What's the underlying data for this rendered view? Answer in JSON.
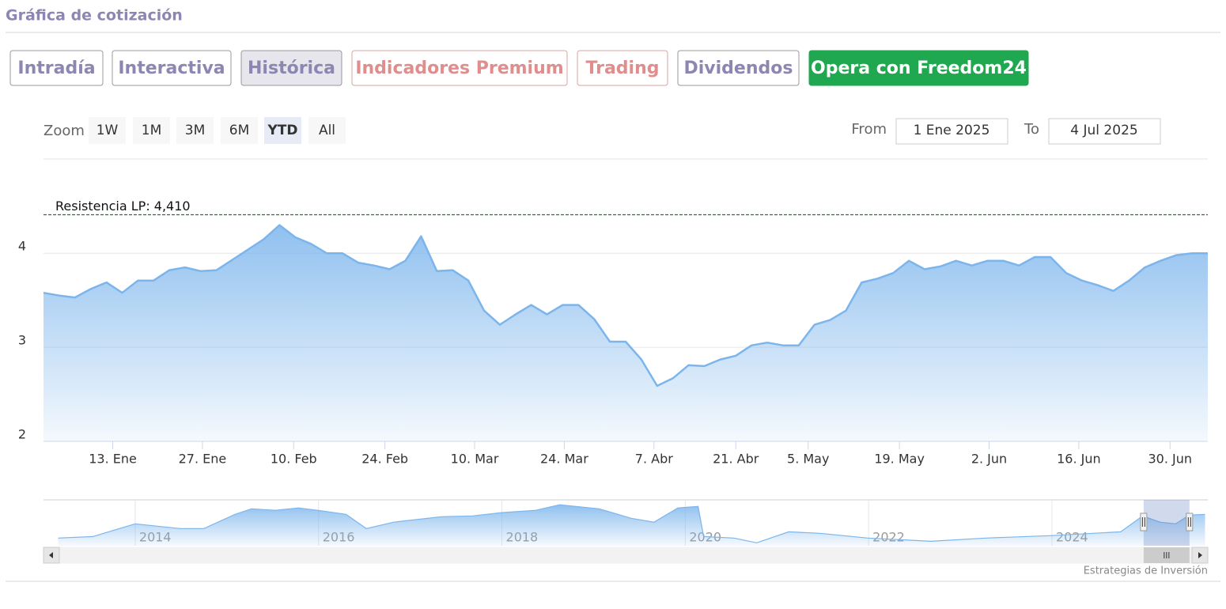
{
  "header": {
    "title": "Gráfica de cotización"
  },
  "tabs": {
    "items": [
      "Intradía",
      "Interactiva",
      "Histórica",
      "Indicadores Premium",
      "Trading",
      "Dividendos",
      "Opera con Freedom24"
    ],
    "selected": 2
  },
  "zoom": {
    "label": "Zoom",
    "buttons": [
      "1W",
      "1M",
      "3M",
      "6M",
      "YTD",
      "All"
    ],
    "selected": 4
  },
  "range": {
    "from_label": "From",
    "from": "1 Ene 2025",
    "to_label": "To",
    "to": "4 Jul 2025"
  },
  "chart_data": {
    "type": "area",
    "color": "#7cb5ec",
    "grid": true,
    "ylim": [
      2,
      4.7
    ],
    "yticks": [
      2,
      3,
      4
    ],
    "xlim": [
      0,
      74
    ],
    "xticks": [
      {
        "value": 4.4,
        "label": "13. Ene"
      },
      {
        "value": 10.1,
        "label": "27. Ene"
      },
      {
        "value": 15.9,
        "label": "10. Feb"
      },
      {
        "value": 21.7,
        "label": "24. Feb"
      },
      {
        "value": 27.4,
        "label": "10. Mar"
      },
      {
        "value": 33.1,
        "label": "24. Mar"
      },
      {
        "value": 38.8,
        "label": "7. Abr"
      },
      {
        "value": 44.0,
        "label": "21. Abr"
      },
      {
        "value": 48.6,
        "label": "5. May"
      },
      {
        "value": 54.4,
        "label": "19. May"
      },
      {
        "value": 60.1,
        "label": "2. Jun"
      },
      {
        "value": 65.8,
        "label": "16. Jun"
      },
      {
        "value": 71.6,
        "label": "30. Jun"
      }
    ],
    "values": [
      3.58,
      3.55,
      3.53,
      3.62,
      3.69,
      3.58,
      3.71,
      3.71,
      3.82,
      3.85,
      3.81,
      3.82,
      3.93,
      4.04,
      4.15,
      4.3,
      4.17,
      4.1,
      4.0,
      4.0,
      3.9,
      3.87,
      3.83,
      3.92,
      4.18,
      3.81,
      3.82,
      3.71,
      3.39,
      3.24,
      3.35,
      3.45,
      3.35,
      3.45,
      3.45,
      3.3,
      3.06,
      3.06,
      2.87,
      2.59,
      2.67,
      2.81,
      2.8,
      2.87,
      2.91,
      3.02,
      3.05,
      3.02,
      3.02,
      3.24,
      3.29,
      3.39,
      3.69,
      3.73,
      3.79,
      3.92,
      3.83,
      3.86,
      3.92,
      3.87,
      3.92,
      3.92,
      3.87,
      3.96,
      3.96,
      3.79,
      3.71,
      3.66,
      3.6,
      3.71,
      3.85,
      3.92,
      3.98,
      4.0,
      4.0
    ],
    "reference_line": {
      "label": "Resistencia LP: 4,410",
      "value": 4.41,
      "color": "#1f7a1f"
    },
    "navigator": {
      "xlim": [
        2013,
        2025.7
      ],
      "ylim": [
        0.3,
        5.7
      ],
      "xticks": [
        2014,
        2016,
        2018,
        2020,
        2022,
        2024
      ],
      "range": [
        2025.0,
        2025.5
      ],
      "x": [
        2013.16,
        2013.54,
        2014.0,
        2014.49,
        2014.75,
        2015.09,
        2015.27,
        2015.53,
        2015.78,
        2015.99,
        2016.3,
        2016.52,
        2016.82,
        2017.34,
        2017.68,
        2017.99,
        2018.37,
        2018.63,
        2019.06,
        2019.41,
        2019.66,
        2019.92,
        2020.14,
        2020.2,
        2020.53,
        2020.78,
        2021.13,
        2021.47,
        2021.99,
        2022.68,
        2023.28,
        2023.97,
        2024.75,
        2024.99,
        2025.18,
        2025.35,
        2025.5,
        2025.67
      ],
      "values": [
        1.2,
        1.38,
        2.88,
        2.32,
        2.32,
        4.0,
        4.65,
        4.47,
        4.75,
        4.47,
        4.0,
        2.32,
        3.07,
        3.72,
        3.81,
        4.19,
        4.47,
        5.12,
        4.65,
        3.53,
        3.07,
        4.75,
        4.93,
        1.38,
        1.2,
        0.64,
        1.94,
        1.76,
        1.2,
        0.82,
        1.2,
        1.48,
        1.94,
        3.81,
        3.07,
        2.88,
        3.91,
        4.0
      ]
    }
  },
  "footer": {
    "credit": "Estrategias de Inversión"
  }
}
